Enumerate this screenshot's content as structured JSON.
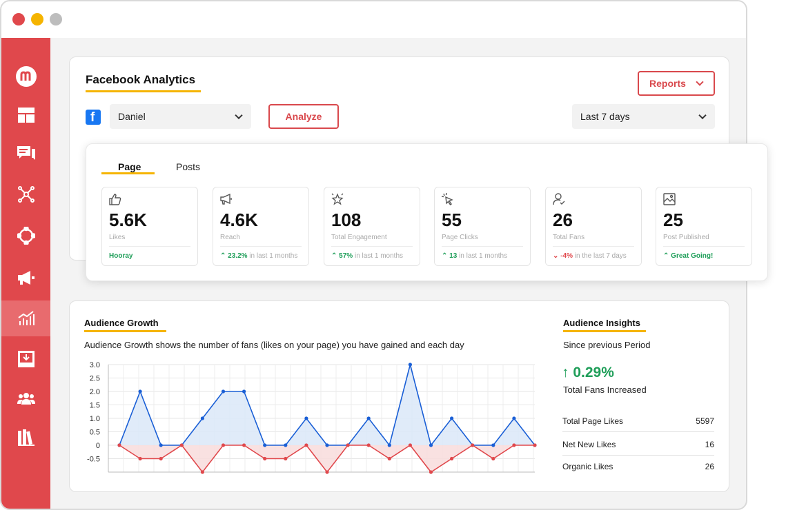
{
  "window": {
    "traffic_lights": [
      "#e0484c",
      "#f5b400",
      "#bdbdbd"
    ]
  },
  "sidebar": {
    "accent": "#e0484c",
    "active_index": 7,
    "items": [
      {
        "icon": "logo-icon"
      },
      {
        "icon": "dashboard-icon"
      },
      {
        "icon": "comments-icon"
      },
      {
        "icon": "network-icon"
      },
      {
        "icon": "lifebuoy-icon"
      },
      {
        "icon": "megaphone-icon"
      },
      {
        "icon": "analytics-icon"
      },
      {
        "icon": "download-icon"
      },
      {
        "icon": "team-icon"
      },
      {
        "icon": "library-icon"
      }
    ]
  },
  "header": {
    "title": "Facebook Analytics",
    "reports_label": "Reports",
    "account": {
      "value": "Daniel"
    },
    "analyze_label": "Analyze",
    "date_range": {
      "value": "Last 7 days"
    }
  },
  "tabs": [
    {
      "label": "Page",
      "active": true
    },
    {
      "label": "Posts",
      "active": false
    }
  ],
  "stats": [
    {
      "icon": "thumbs-up-icon",
      "value": "5.6K",
      "label": "Likes",
      "foot_strong": "Hooray",
      "foot_rest": "",
      "trend": "none"
    },
    {
      "icon": "megaphone-icon",
      "value": "4.6K",
      "label": "Reach",
      "foot_strong": "23.2%",
      "foot_rest": " in last 1 months",
      "trend": "up"
    },
    {
      "icon": "star-icon",
      "value": "108",
      "label": "Total Engagement",
      "foot_strong": "57%",
      "foot_rest": " in last 1 months",
      "trend": "up"
    },
    {
      "icon": "cursor-click-icon",
      "value": "55",
      "label": "Page Clicks",
      "foot_strong": "13",
      "foot_rest": " in last 1 months",
      "trend": "up"
    },
    {
      "icon": "user-check-icon",
      "value": "26",
      "label": "Total Fans",
      "foot_strong": "-4%",
      "foot_rest": " in the last 7 days",
      "trend": "down"
    },
    {
      "icon": "image-icon",
      "value": "25",
      "label": "Post Published",
      "foot_strong": "Great Going!",
      "foot_rest": "",
      "trend": "up"
    }
  ],
  "audience_growth": {
    "title": "Audience Growth",
    "description": "Audience Growth shows the number of fans (likes on your page) you have gained and each day"
  },
  "audience_insights": {
    "title": "Audience Insights",
    "period": "Since previous Period",
    "change": "↑ 0.29%",
    "change_label": "Total Fans Increased",
    "rows": [
      {
        "label": "Total Page Likes",
        "value": "5597"
      },
      {
        "label": "Net New Likes",
        "value": "16"
      },
      {
        "label": "Organic Likes",
        "value": "26"
      }
    ]
  },
  "chart_data": {
    "type": "area",
    "ylim": [
      -1,
      3
    ],
    "yticks": [
      "3.0",
      "2.5",
      "2.0",
      "1.5",
      "1.0",
      "0.5",
      "0",
      "-0.5"
    ],
    "grid": true,
    "series": [
      {
        "color": "#1a5fd6",
        "fill": "#dbe8f8",
        "x": [
          0,
          1,
          2,
          3,
          4,
          5,
          6,
          7,
          8,
          9,
          10,
          11,
          12,
          13,
          14,
          15,
          16,
          17,
          18,
          19,
          20
        ],
        "y": [
          0,
          2,
          0,
          0,
          1,
          2,
          2,
          0,
          0,
          1,
          0,
          0,
          1,
          0,
          3,
          0,
          1,
          0,
          0,
          1,
          0
        ]
      },
      {
        "color": "#e0484c",
        "fill": "#f8dcdc",
        "x": [
          0,
          1,
          2,
          3,
          4,
          5,
          6,
          7,
          8,
          9,
          10,
          11,
          12,
          13,
          14,
          15,
          16,
          17,
          18,
          19,
          20
        ],
        "y": [
          0,
          -0.5,
          -0.5,
          0,
          -1,
          0,
          0,
          -0.5,
          -0.5,
          0,
          -1,
          0,
          0,
          -0.5,
          0,
          -1,
          -0.5,
          0,
          -0.5,
          0,
          0
        ]
      }
    ]
  }
}
